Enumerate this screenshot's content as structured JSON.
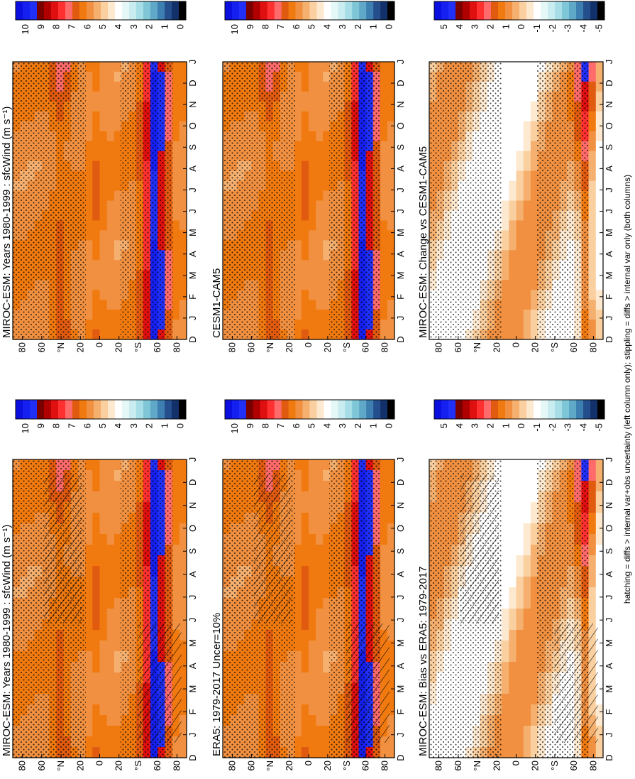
{
  "figure": {
    "footnote": "hatching = diffs > internal var+obs uncertainty (left column only); stippling = diffs > internal var only (both columns)"
  },
  "chart_data": [
    {
      "type": "heatmap",
      "title": "MIROC-ESM: Years 1980-1999 : sfcWind (m s⁻¹)",
      "x": [
        "D",
        "J",
        "F",
        "M",
        "A",
        "M",
        "J",
        "J",
        "A",
        "S",
        "O",
        "N",
        "D",
        "J"
      ],
      "y": [
        "80",
        "60",
        "°N",
        "20",
        "0",
        "20",
        "°S",
        "60",
        "80"
      ],
      "ylim": [
        -90,
        90
      ],
      "scale": "absolute",
      "hatching": true,
      "stippling": true
    },
    {
      "type": "heatmap",
      "title": "MIROC-ESM: Years 1980-1999 : sfcWind (m s⁻¹)",
      "x": [
        "D",
        "J",
        "F",
        "M",
        "A",
        "M",
        "J",
        "J",
        "A",
        "S",
        "O",
        "N",
        "D",
        "J"
      ],
      "y": [
        "80",
        "60",
        "°N",
        "20",
        "0",
        "20",
        "°S",
        "60",
        "80"
      ],
      "ylim": [
        -90,
        90
      ],
      "scale": "absolute",
      "hatching": false,
      "stippling": true
    },
    {
      "type": "heatmap",
      "title": "ERA5: 1979-2017 Uncer=10%",
      "x": [
        "D",
        "J",
        "F",
        "M",
        "A",
        "M",
        "J",
        "J",
        "A",
        "S",
        "O",
        "N",
        "D",
        "J"
      ],
      "y": [
        "80",
        "60",
        "°N",
        "20",
        "0",
        "20",
        "°S",
        "60",
        "80"
      ],
      "ylim": [
        -90,
        90
      ],
      "scale": "absolute",
      "hatching": true,
      "stippling": true
    },
    {
      "type": "heatmap",
      "title": "CESM1-CAM5",
      "x": [
        "D",
        "J",
        "F",
        "M",
        "A",
        "M",
        "J",
        "J",
        "A",
        "S",
        "O",
        "N",
        "D",
        "J"
      ],
      "y": [
        "80",
        "60",
        "°N",
        "20",
        "0",
        "20",
        "°S",
        "60",
        "80"
      ],
      "ylim": [
        -90,
        90
      ],
      "scale": "absolute",
      "hatching": false,
      "stippling": true
    },
    {
      "type": "heatmap",
      "title": "MIROC-ESM: Bias vs ERA5: 1979-2017",
      "x": [
        "D",
        "J",
        "F",
        "M",
        "A",
        "M",
        "J",
        "J",
        "A",
        "S",
        "O",
        "N",
        "D",
        "J"
      ],
      "y": [
        "80",
        "60",
        "°N",
        "20",
        "0",
        "20",
        "°S",
        "60",
        "80"
      ],
      "ylim": [
        -90,
        90
      ],
      "scale": "difference",
      "hatching": true,
      "stippling": true
    },
    {
      "type": "heatmap",
      "title": "MIROC-ESM: Change vs CESM1-CAM5",
      "x": [
        "D",
        "J",
        "F",
        "M",
        "A",
        "M",
        "J",
        "J",
        "A",
        "S",
        "O",
        "N",
        "D",
        "J"
      ],
      "y": [
        "80",
        "60",
        "°N",
        "20",
        "0",
        "20",
        "°S",
        "60",
        "80"
      ],
      "ylim": [
        -90,
        90
      ],
      "scale": "difference",
      "hatching": false,
      "stippling": true
    }
  ],
  "colorbars": {
    "absolute": {
      "labels": [
        "10",
        "9",
        "8",
        "7",
        "6",
        "5",
        "4",
        "3",
        "2",
        "1",
        "0"
      ],
      "colors": [
        "#0a0fe0",
        "#1520f0",
        "#2030f8",
        "#7a0000",
        "#b00000",
        "#e01010",
        "#ff3030",
        "#ff6a6a",
        "#e05a10",
        "#f07a10",
        "#f09040",
        "#f5b070",
        "#fad0a0",
        "#fde8d0",
        "#ffffff",
        "#e6f7f7",
        "#c8ecf0",
        "#a6dde6",
        "#7fc6d6",
        "#5fa8c8",
        "#3c7fb0",
        "#254f8c",
        "#12306a",
        "#000000"
      ]
    },
    "difference": {
      "labels": [
        "5",
        "4",
        "3",
        "2",
        "1",
        "0",
        "-1",
        "-2",
        "-3",
        "-4",
        "-5"
      ],
      "colors": [
        "#0a0fe0",
        "#1520f0",
        "#2030f8",
        "#7a0000",
        "#b00000",
        "#e01010",
        "#ff3030",
        "#ff6a6a",
        "#e05a10",
        "#f07a10",
        "#f09040",
        "#f5b070",
        "#fad0a0",
        "#fde8d0",
        "#ffffff",
        "#e6f7f7",
        "#c8ecf0",
        "#a6dde6",
        "#7fc6d6",
        "#5fa8c8",
        "#3c7fb0",
        "#254f8c",
        "#12306a",
        "#000000"
      ]
    }
  }
}
